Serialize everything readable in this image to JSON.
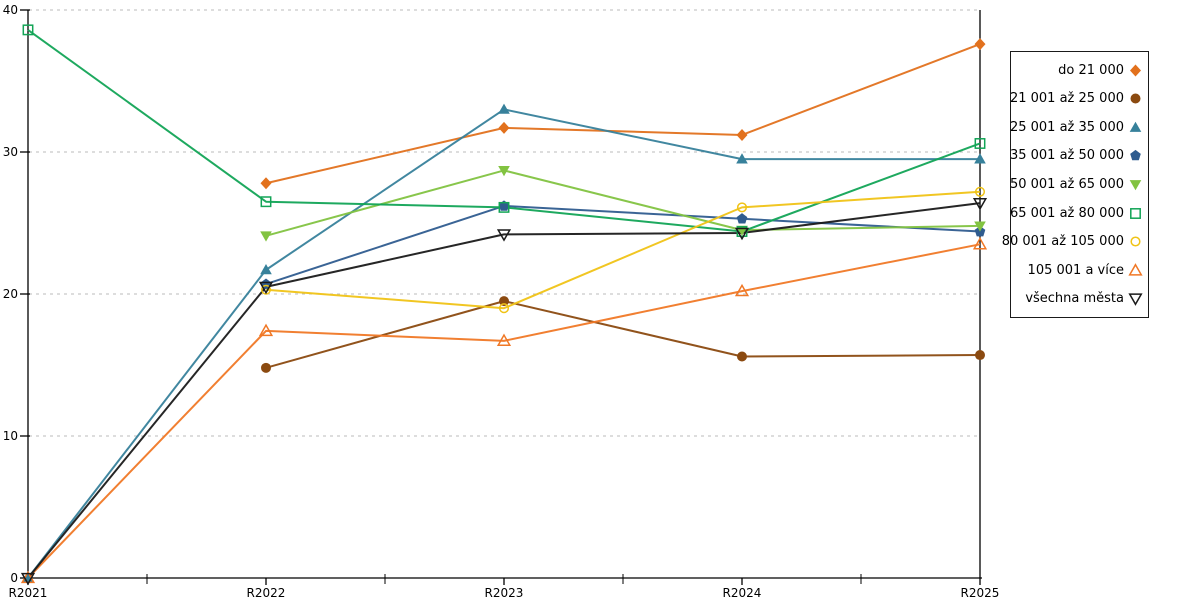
{
  "chart_data": {
    "type": "line",
    "title": "",
    "xlabel": "",
    "ylabel": "",
    "categories": [
      "R2021",
      "R2022",
      "R2023",
      "R2024",
      "R2025"
    ],
    "yticks": [
      0,
      10,
      20,
      30,
      40
    ],
    "ylim": [
      0,
      40
    ],
    "grid": "horizontal-dashed",
    "gridline_color": "#bbbbbb",
    "axis_color": "#000000",
    "legend_position": "right",
    "series": [
      {
        "name": "do 21 000",
        "color": "#E2711D",
        "marker": "diamond",
        "fill": true,
        "values": [
          null,
          27.8,
          31.7,
          31.2,
          37.6
        ]
      },
      {
        "name": "21 001 až 25 000",
        "color": "#8B4A10",
        "marker": "circle",
        "fill": true,
        "values": [
          null,
          14.8,
          19.5,
          15.6,
          15.7
        ]
      },
      {
        "name": "25 001 až 35 000",
        "color": "#37819B",
        "marker": "triangle-up",
        "fill": true,
        "values": [
          0,
          21.7,
          33.0,
          29.5,
          29.5
        ]
      },
      {
        "name": "35 001 až 50 000",
        "color": "#2F5C8F",
        "marker": "pentagon",
        "fill": true,
        "values": [
          null,
          20.7,
          26.2,
          25.3,
          24.4
        ]
      },
      {
        "name": "50 001 až 65 000",
        "color": "#82C341",
        "marker": "triangle-down",
        "fill": true,
        "values": [
          null,
          24.1,
          28.7,
          24.5,
          24.8
        ]
      },
      {
        "name": "65 001 až 80 000",
        "color": "#12A456",
        "marker": "square",
        "fill": false,
        "values": [
          38.6,
          26.5,
          26.1,
          24.4,
          30.6
        ]
      },
      {
        "name": "80 001 až 105 000",
        "color": "#F0C316",
        "marker": "circle",
        "fill": false,
        "values": [
          null,
          20.3,
          19.0,
          26.1,
          27.2
        ]
      },
      {
        "name": "105 001 a více",
        "color": "#F07826",
        "marker": "triangle-up",
        "fill": false,
        "values": [
          0,
          17.4,
          16.7,
          20.2,
          23.5
        ]
      },
      {
        "name": "všechna města",
        "color": "#1A1A1A",
        "marker": "triangle-down",
        "fill": false,
        "values": [
          0,
          20.5,
          24.2,
          24.3,
          26.4
        ]
      }
    ]
  }
}
